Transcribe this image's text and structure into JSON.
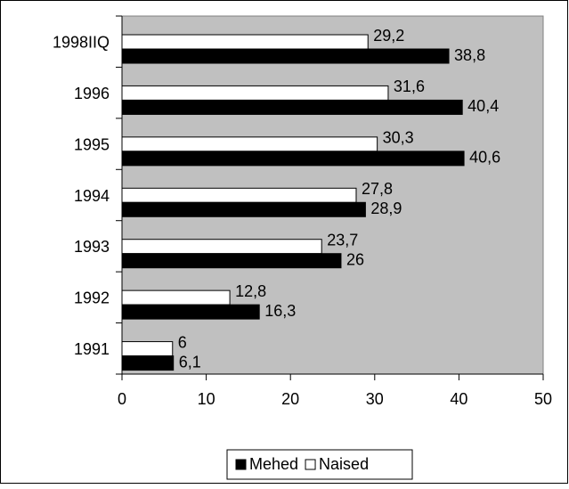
{
  "chart_data": {
    "type": "hbar",
    "categories": [
      "1998IIQ",
      "1996",
      "1995",
      "1994",
      "1993",
      "1992",
      "1991"
    ],
    "series": [
      {
        "name": "Naised",
        "color": "#ffffff",
        "values": [
          29.2,
          31.6,
          30.3,
          27.8,
          23.7,
          12.8,
          6
        ],
        "value_labels": [
          "29,2",
          "31,6",
          "30,3",
          "27,8",
          "23,7",
          "12,8",
          "6"
        ]
      },
      {
        "name": "Mehed",
        "color": "#000000",
        "values": [
          38.8,
          40.4,
          40.6,
          28.9,
          26,
          16.3,
          6.1
        ],
        "value_labels": [
          "38,8",
          "40,4",
          "40,6",
          "28,9",
          "26",
          "16,3",
          "6,1"
        ]
      }
    ],
    "legend_order": [
      "Mehed",
      "Naised"
    ],
    "xlim": [
      0,
      50
    ],
    "xticks": [
      0,
      10,
      20,
      30,
      40,
      50
    ],
    "plot_background": "#c0c0c0",
    "legend": "bottom"
  }
}
